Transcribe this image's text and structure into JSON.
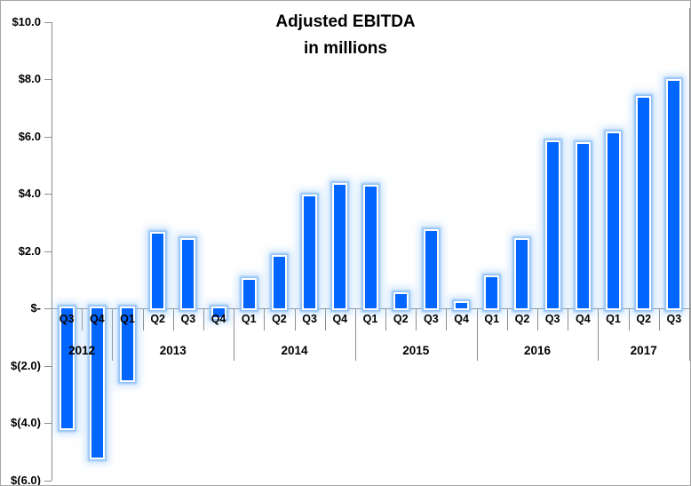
{
  "chart_data": {
    "type": "bar",
    "title": "Adjusted EBITDA",
    "subtitle": "in millions",
    "legend": "none",
    "grid": "off",
    "y_axis": {
      "min": -6,
      "max": 10,
      "tick_labels": [
        "$10.0",
        "$8.0",
        "$6.0",
        "$4.0",
        "$2.0",
        "$-",
        "$(2.0)",
        "$(4.0)",
        "$(6.0)"
      ],
      "tick_values": [
        10,
        8,
        6,
        4,
        2,
        0,
        -2,
        -4,
        -6
      ]
    },
    "x_axis": {
      "level_1": "quarters",
      "level_2": "years"
    },
    "groups": [
      {
        "year": "2012",
        "quarters": [
          "Q3",
          "Q4"
        ],
        "values": [
          -4.2,
          -5.2
        ]
      },
      {
        "year": "2013",
        "quarters": [
          "Q1",
          "Q2",
          "Q3",
          "Q4"
        ],
        "values": [
          -2.5,
          2.6,
          2.4,
          -0.3
        ]
      },
      {
        "year": "2014",
        "quarters": [
          "Q1",
          "Q2",
          "Q3",
          "Q4"
        ],
        "values": [
          1.0,
          1.8,
          3.9,
          4.3
        ]
      },
      {
        "year": "2015",
        "quarters": [
          "Q1",
          "Q2",
          "Q3",
          "Q4"
        ],
        "values": [
          4.25,
          0.5,
          2.7,
          0.2
        ]
      },
      {
        "year": "2016",
        "quarters": [
          "Q1",
          "Q2",
          "Q3",
          "Q4"
        ],
        "values": [
          1.1,
          2.4,
          5.8,
          5.75
        ]
      },
      {
        "year": "2017",
        "quarters": [
          "Q1",
          "Q2",
          "Q3"
        ],
        "values": [
          6.1,
          7.35,
          7.95
        ]
      }
    ],
    "colors": {
      "bar_fill": "#0066FF",
      "bar_border": "#FFFFFF",
      "glow": "#9CC6F5",
      "axis": "#8C8C8C",
      "text": "#000000",
      "background": "#FFFFFF"
    }
  }
}
